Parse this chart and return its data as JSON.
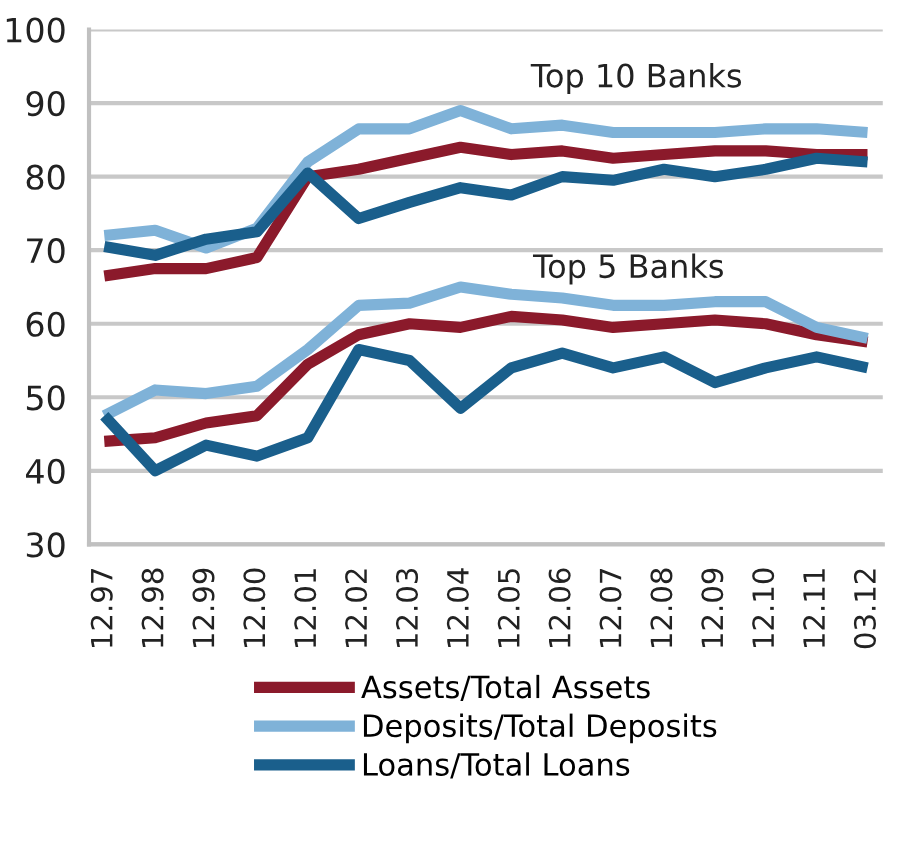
{
  "chart_data": {
    "type": "line",
    "categories": [
      "12.97",
      "12.98",
      "12.99",
      "12.00",
      "12.01",
      "12.02",
      "12.03",
      "12.04",
      "12.05",
      "12.06",
      "12.07",
      "12.08",
      "12.09",
      "12.10",
      "12.11",
      "03.12"
    ],
    "series": [
      {
        "name": "Assets/Total Assets",
        "color": "#8b1a2b",
        "values": [
          66.5,
          67.5,
          67.5,
          69,
          80,
          81,
          82.5,
          84,
          83,
          83.5,
          82.5,
          83,
          83.5,
          83.5,
          83,
          83
        ]
      },
      {
        "name": "Deposits/Total Deposits",
        "color": "#7fb2d8",
        "values": [
          72,
          72.7,
          70.3,
          73,
          82,
          86.5,
          86.5,
          89,
          86.5,
          87,
          86,
          86,
          86,
          86.5,
          86.5,
          86
        ]
      },
      {
        "name": "Loans/Total Loans",
        "color": "#1a5f8c",
        "values": [
          70.5,
          69.3,
          71.5,
          72.5,
          80.5,
          74.3,
          76.5,
          78.5,
          77.5,
          80,
          79.5,
          81,
          80,
          81,
          82.5,
          82
        ]
      },
      {
        "color": "#8b1a2b",
        "values": [
          44,
          44.5,
          46.5,
          47.5,
          54.5,
          58.5,
          60,
          59.5,
          61,
          60.5,
          59.5,
          60,
          60.5,
          60,
          58.5,
          57.5
        ]
      },
      {
        "color": "#7fb2d8",
        "values": [
          47.5,
          51,
          50.5,
          51.5,
          56.5,
          62.5,
          62.8,
          65,
          64,
          63.5,
          62.5,
          62.5,
          63,
          63,
          59.5,
          58
        ]
      },
      {
        "color": "#1a5f8c",
        "values": [
          47.5,
          40,
          43.5,
          42,
          44.5,
          56.5,
          55,
          48.5,
          54,
          56,
          54,
          55.5,
          52,
          54,
          55.5,
          54
        ]
      }
    ],
    "ylim": [
      30,
      100
    ],
    "yticks": [
      30,
      40,
      50,
      60,
      70,
      80,
      90,
      100
    ],
    "grid": "y",
    "legend": "bottom",
    "marker": "none",
    "line_style": "solid",
    "annotations": [
      "Top 10 Banks",
      "Top 5 Banks"
    ]
  }
}
